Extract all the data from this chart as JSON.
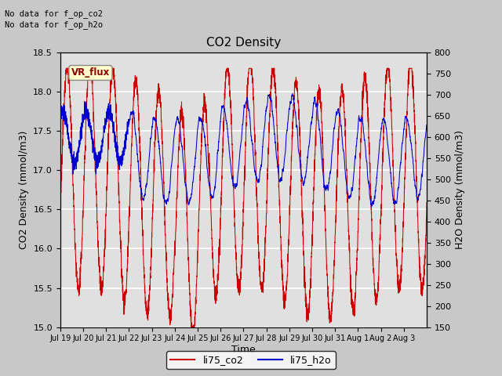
{
  "title": "CO2 Density",
  "xlabel": "Time",
  "ylabel_left": "CO2 Density (mmol/m3)",
  "ylabel_right": "H2O Density (mmol/m3)",
  "ylim_left": [
    15.0,
    18.5
  ],
  "ylim_right": [
    150,
    800
  ],
  "annotation_lines": [
    "No data for f_op_co2",
    "No data for f_op_h2o"
  ],
  "vr_flux_label": "VR_flux",
  "legend_entries": [
    "li75_co2",
    "li75_h2o"
  ],
  "co2_color": "#cc0000",
  "h2o_color": "#0000cc",
  "fig_bg": "#c8c8c8",
  "plot_bg": "#e0e0e0",
  "grid_color": "white",
  "xtick_labels": [
    "Jul 19",
    "Jul 20",
    "Jul 21",
    "Jul 22",
    "Jul 23",
    "Jul 24",
    "Jul 25",
    "Jul 26",
    "Jul 27",
    "Jul 28",
    "Jul 29",
    "Jul 30",
    "Jul 31",
    "Aug 1",
    "Aug 2",
    "Aug 3"
  ],
  "yticks_left": [
    15.0,
    15.5,
    16.0,
    16.5,
    17.0,
    17.5,
    18.0,
    18.5
  ],
  "yticks_right": [
    150,
    200,
    250,
    300,
    350,
    400,
    450,
    500,
    550,
    600,
    650,
    700,
    750,
    800
  ],
  "num_days": 16
}
